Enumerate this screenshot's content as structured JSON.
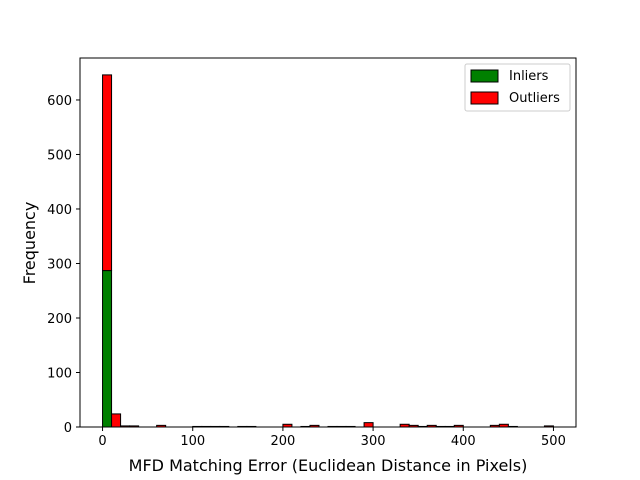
{
  "chart_data": {
    "type": "bar",
    "stacked": true,
    "xlabel": "MFD Matching Error (Euclidean Distance in Pixels)",
    "ylabel": "Frequency",
    "xlim": [
      -25,
      525
    ],
    "ylim": [
      0,
      677
    ],
    "xticks": [
      0,
      100,
      200,
      300,
      400,
      500
    ],
    "yticks": [
      0,
      100,
      200,
      300,
      400,
      500,
      600
    ],
    "bin_edges": [
      0,
      10,
      20,
      30,
      40,
      50,
      60,
      70,
      80,
      90,
      100,
      110,
      120,
      130,
      140,
      150,
      160,
      170,
      180,
      190,
      200,
      210,
      220,
      230,
      240,
      250,
      260,
      270,
      280,
      290,
      300,
      310,
      320,
      330,
      340,
      350,
      360,
      370,
      380,
      390,
      400,
      410,
      420,
      430,
      440,
      450,
      460,
      470,
      480,
      490,
      500
    ],
    "series": [
      {
        "name": "Inliers",
        "color": "#008000",
        "values": [
          287,
          0,
          0,
          0,
          0,
          0,
          0,
          0,
          0,
          0,
          0,
          0,
          0,
          0,
          0,
          0,
          0,
          0,
          0,
          0,
          0,
          0,
          0,
          0,
          0,
          0,
          0,
          0,
          0,
          0,
          0,
          0,
          0,
          0,
          0,
          0,
          0,
          0,
          0,
          0,
          0,
          0,
          0,
          0,
          0,
          0,
          0,
          0,
          0,
          0
        ]
      },
      {
        "name": "Outliers",
        "color": "#ff0000",
        "values": [
          359,
          24,
          2,
          2,
          0,
          0,
          3,
          0,
          0,
          0,
          1,
          1,
          1,
          1,
          0,
          1,
          1,
          0,
          0,
          0,
          5,
          0,
          1,
          3,
          0,
          1,
          1,
          1,
          0,
          8,
          0,
          0,
          0,
          5,
          3,
          1,
          3,
          1,
          1,
          3,
          0,
          0,
          0,
          3,
          5,
          1,
          0,
          0,
          0,
          2
        ]
      }
    ],
    "legend": {
      "position": "top-right"
    },
    "grid": false
  }
}
